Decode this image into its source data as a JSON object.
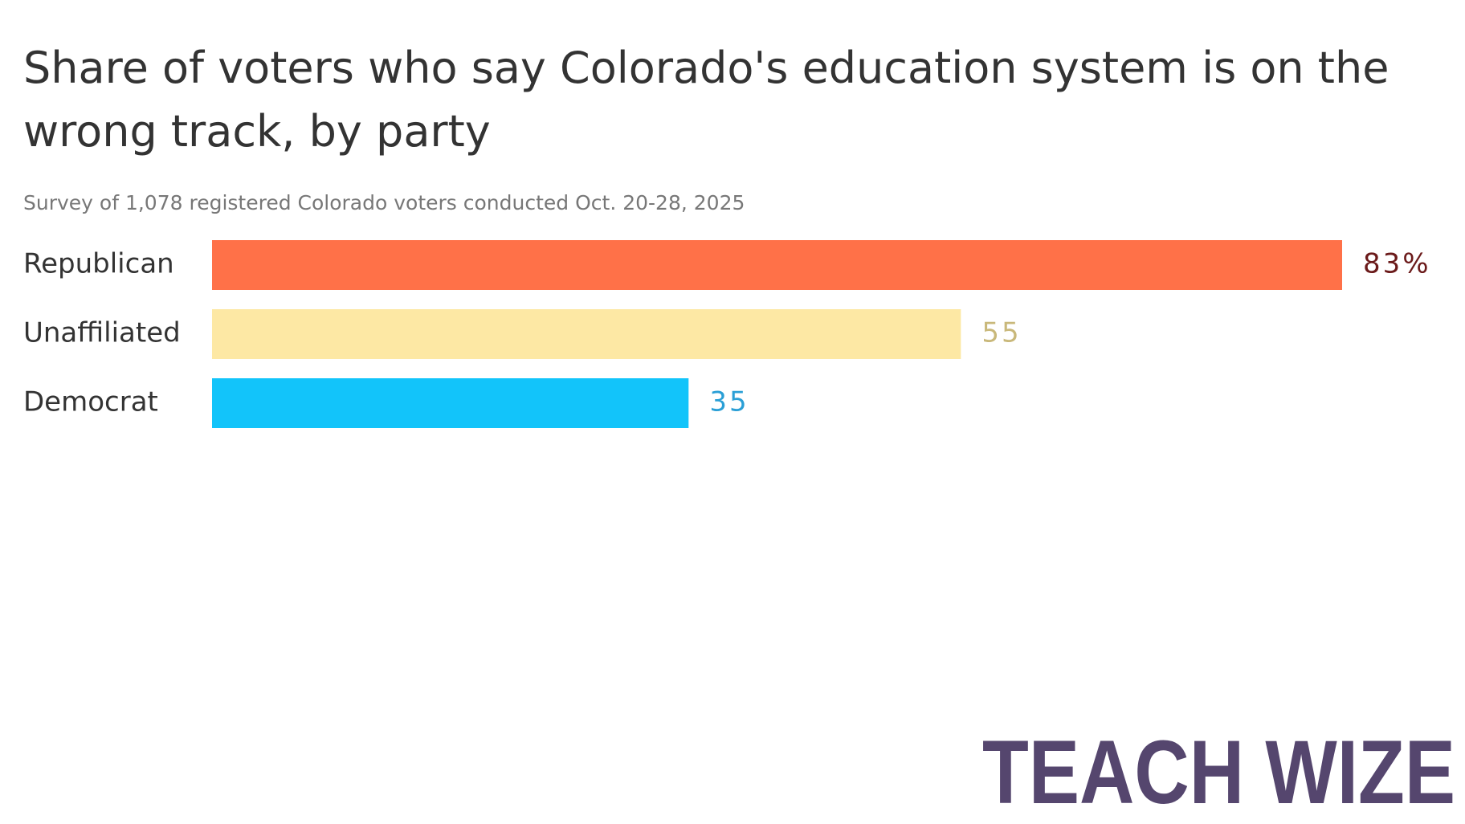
{
  "chart_data": {
    "type": "hbar",
    "title": "Share of voters who say Colorado's education system is on the wrong track, by party",
    "subtitle": "Survey of 1,078 registered Colorado voters conducted Oct. 20-28, 2025",
    "categories": [
      "Republican",
      "Unaffiliated",
      "Democrat"
    ],
    "values": [
      83,
      55,
      35
    ],
    "value_labels": [
      "83%",
      "55",
      "35"
    ],
    "colors": [
      "#ff7148",
      "#fde8a4",
      "#12c4fa"
    ],
    "label_colors": [
      "#6b1a1a",
      "#c9b87a",
      "#2a9fd6"
    ]
  },
  "watermark": "TEACH WIZE"
}
